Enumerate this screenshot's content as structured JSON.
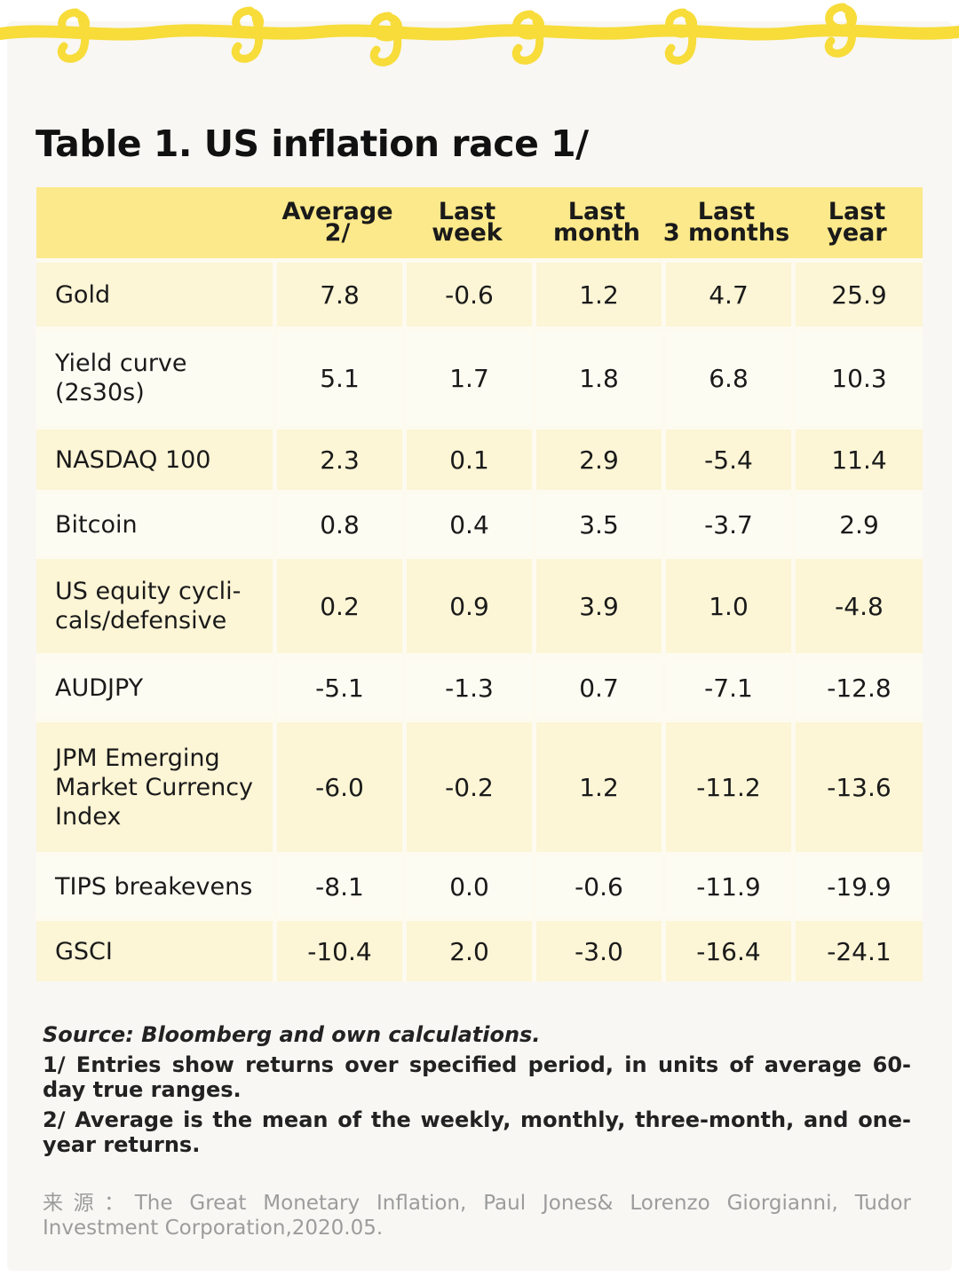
{
  "title": "Table 1. US inflation race 1/",
  "colors": {
    "header_bg": "#fce98b",
    "row_odd": "#fcf5d6",
    "row_even": "#fdfcf3",
    "scribble": "#f7dc3a"
  },
  "table": {
    "headers": [
      "",
      "Average 2/",
      "Last\nweek",
      "Last\nmonth",
      "Last\n3 months",
      "Last\nyear"
    ],
    "rows": [
      {
        "label": "Gold",
        "values": [
          "7.8",
          "-0.6",
          "1.2",
          "4.7",
          "25.9"
        ]
      },
      {
        "label": "Yield curve\n(2s30s)",
        "values": [
          "5.1",
          "1.7",
          "1.8",
          "6.8",
          "10.3"
        ]
      },
      {
        "label": "NASDAQ 100",
        "values": [
          "2.3",
          "0.1",
          "2.9",
          "-5.4",
          "11.4"
        ]
      },
      {
        "label": "Bitcoin",
        "values": [
          "0.8",
          "0.4",
          "3.5",
          "-3.7",
          "2.9"
        ]
      },
      {
        "label": "US equity cycli-\ncals/defensive",
        "values": [
          "0.2",
          "0.9",
          "3.9",
          "1.0",
          "-4.8"
        ]
      },
      {
        "label": "AUDJPY",
        "values": [
          "-5.1",
          "-1.3",
          "0.7",
          "-7.1",
          "-12.8"
        ]
      },
      {
        "label": "JPM Emerging\nMarket Currency\nIndex",
        "values": [
          "-6.0",
          "-0.2",
          "1.2",
          "-11.2",
          "-13.6"
        ]
      },
      {
        "label": "TIPS breakevens",
        "values": [
          "-8.1",
          "0.0",
          "-0.6",
          "-11.9",
          "-19.9"
        ]
      },
      {
        "label": "GSCI",
        "values": [
          "-10.4",
          "2.0",
          "-3.0",
          "-16.4",
          "-24.1"
        ]
      }
    ]
  },
  "notes": {
    "source": "Source: Bloomberg and own calculations.",
    "note1": "1/ Entries show returns over specified period, in units of average 60-day true ranges.",
    "note2": "2/ Average is the mean of the weekly, monthly, three-month, and one-year returns."
  },
  "footer": "来源：The Great Monetary Inflation, Paul Jones& Lorenzo Giorgianni, Tudor Investment Corporation,2020.05."
}
